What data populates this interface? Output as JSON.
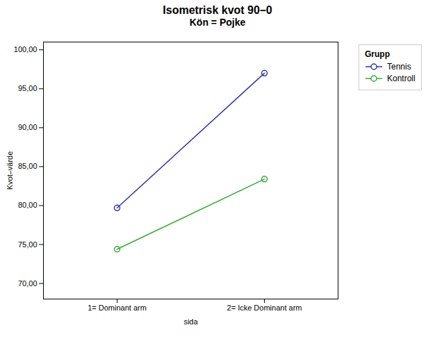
{
  "chart_data": {
    "type": "line",
    "title": "Isometrisk kvot 90–0",
    "subtitle": "Kön = Pojke",
    "xlabel": "sida",
    "ylabel": "Kvot–värde",
    "legend_title": "Grupp",
    "x": [
      1,
      2
    ],
    "xlim": [
      0.5,
      2.5
    ],
    "xticks": [
      {
        "value": 1,
        "label": "1= Dominant arm"
      },
      {
        "value": 2,
        "label": "2= Icke Dominant arm"
      }
    ],
    "ylim": [
      68,
      101
    ],
    "yticks": [
      {
        "value": 70,
        "label": "70,00"
      },
      {
        "value": 75,
        "label": "75,00"
      },
      {
        "value": 80,
        "label": "80,00"
      },
      {
        "value": 85,
        "label": "85,00"
      },
      {
        "value": 90,
        "label": "90,00"
      },
      {
        "value": 95,
        "label": "95,00"
      },
      {
        "value": 100,
        "label": "100,00"
      }
    ],
    "series": [
      {
        "name": "Tennis",
        "color": "#3333aa",
        "values": [
          79.7,
          97.0
        ]
      },
      {
        "name": "Kontroll",
        "color": "#33aa33",
        "values": [
          74.4,
          83.4
        ]
      }
    ],
    "marker": "circle",
    "grid": false,
    "legend": "right"
  }
}
